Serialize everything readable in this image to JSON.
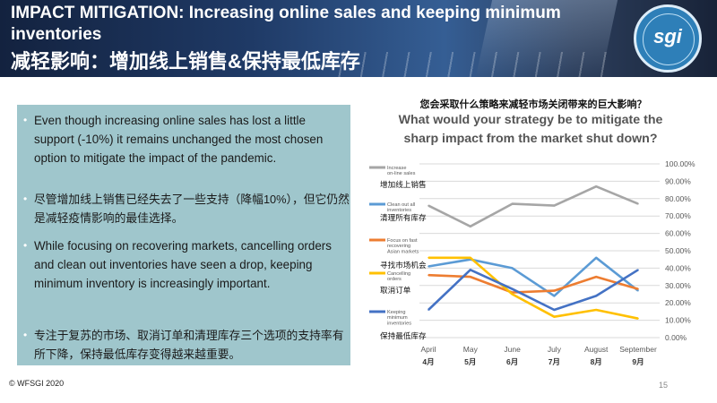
{
  "header": {
    "title_en": "IMPACT MITIGATION: Increasing online sales and keeping minimum inventories",
    "title_cn": "减轻影响：增加线上销售&保持最低库存",
    "logo_text": "sgi"
  },
  "bullets": [
    "Even though increasing online sales has lost a little support (-10%) it remains unchanged the most chosen option to mitigate the impact of the pandemic.",
    "尽管增加线上销售已经失去了一些支持（降幅10%），但它仍然是减轻疫情影响的最佳选择。",
    "While focusing on recovering markets, cancelling orders and clean out inventories have seen a drop, keeping minimum inventory is increasingly important.",
    "专注于复苏的市场、取消订单和清理库存三个选项的支持率有所下降，保持最低库存变得越来越重要。"
  ],
  "chart_data": {
    "type": "line",
    "title_cn": "您会采取什么策略来减轻市场关闭带来的巨大影响？",
    "title": "What would your strategy be to mitigate the sharp impact from the market shut down?",
    "categories": [
      "April",
      "May",
      "June",
      "July",
      "August",
      "September"
    ],
    "categories_cn": [
      "4月",
      "5月",
      "6月",
      "7月",
      "8月",
      "9月"
    ],
    "ylim": [
      0,
      100
    ],
    "yticks": [
      "0.00%",
      "10.00%",
      "20.00%",
      "30.00%",
      "40.00%",
      "50.00%",
      "60.00%",
      "70.00%",
      "80.00%",
      "90.00%",
      "100.00%"
    ],
    "grid": true,
    "series": [
      {
        "name": "Increase on-line sales",
        "name_cn": "增加线上销售",
        "color": "#a6a6a6",
        "values": [
          76,
          64,
          77,
          76,
          87,
          77
        ]
      },
      {
        "name": "Clean out all inventories",
        "name_cn": "清理所有库存",
        "color": "#5b9bd5",
        "values": [
          41,
          45,
          40,
          24,
          46,
          27
        ]
      },
      {
        "name": "Focus on fast recovering Asian markets",
        "name_cn": "寻找市场机会",
        "color": "#ed7d31",
        "values": [
          36,
          35,
          26,
          27,
          35,
          28
        ]
      },
      {
        "name": "Cancelling orders",
        "name_cn": "取消订单",
        "color": "#ffc000",
        "values": [
          46,
          46,
          25,
          12,
          16,
          11
        ]
      },
      {
        "name": "Keeping minimum inventories",
        "name_cn": "保持最低库存",
        "color": "#4472c4",
        "values": [
          16,
          39,
          28,
          16,
          24,
          39
        ]
      }
    ]
  },
  "footer": {
    "copyright": "© WFSGI 2020",
    "page": "15"
  }
}
